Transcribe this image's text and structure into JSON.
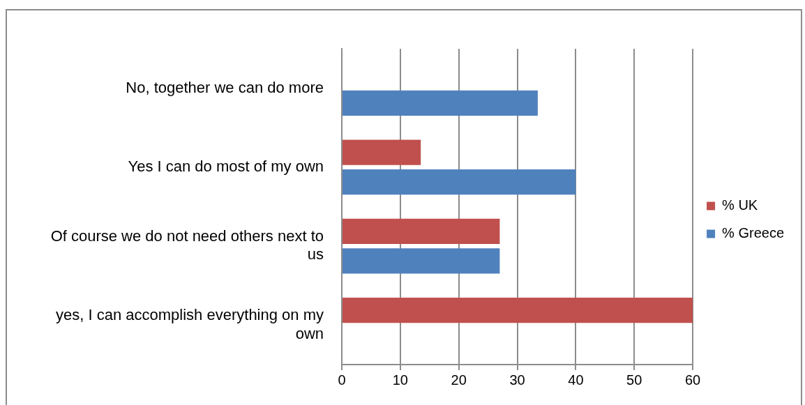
{
  "chart_data": {
    "type": "bar",
    "orientation": "horizontal",
    "categories": [
      "No, together we can do more",
      "Yes I can do most of my own",
      "Of course we do not need others next to us",
      "yes, I can accomplish everything on my own"
    ],
    "series": [
      {
        "name": "% UK",
        "color": "#c0504d",
        "values": [
          0,
          13.5,
          27,
          60
        ]
      },
      {
        "name": "% Greece",
        "color": "#4f81bd",
        "values": [
          33.5,
          40,
          27,
          0
        ]
      }
    ],
    "xlim": [
      0,
      60
    ],
    "xticks": [
      0,
      10,
      20,
      30,
      40,
      50,
      60
    ],
    "grid": "x",
    "legend": "right"
  }
}
